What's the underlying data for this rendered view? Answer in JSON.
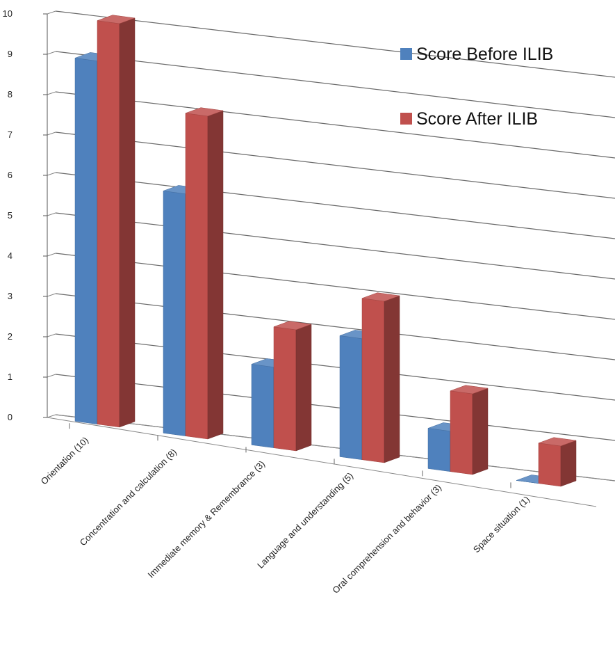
{
  "chart_data": {
    "type": "bar",
    "title": "",
    "xlabel": "",
    "ylabel": "",
    "ylim": [
      0,
      10
    ],
    "yticks": [
      0,
      1,
      2,
      3,
      4,
      5,
      6,
      7,
      8,
      9,
      10
    ],
    "grid": true,
    "legend_position": "top-right",
    "categories": [
      "Orientation (10)",
      "Concentration and calculation (8)",
      "Immediate memory & Remembrance (3)",
      "Language and understanding (5)",
      "Oral comprehension and behavior (3)",
      "Space situation  (1)"
    ],
    "series": [
      {
        "name": "Score  Before ILIB",
        "values": [
          9,
          6,
          2,
          3,
          1,
          0
        ],
        "color": "#4F81BD"
      },
      {
        "name": "Score  After ILIB",
        "values": [
          10,
          8,
          3,
          4,
          2,
          1
        ],
        "color": "#C0504D"
      }
    ]
  }
}
